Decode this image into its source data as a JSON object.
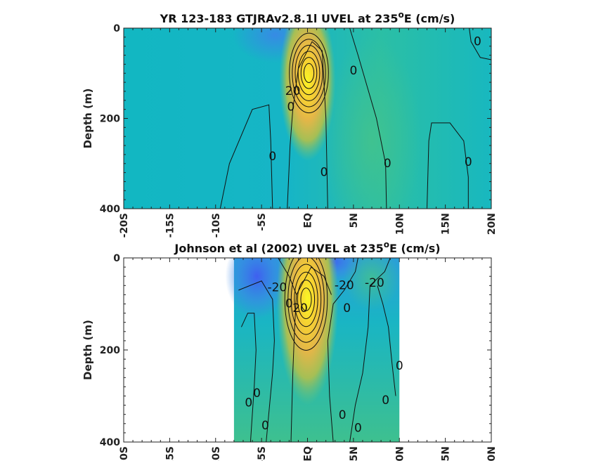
{
  "chart_data": [
    {
      "type": "heatmap",
      "title": "YR 123-183 GTJRAv2.8.1l UVEL at 235",
      "title_sup": "o",
      "title_tail": "E (cm/s)",
      "ylabel": "Depth (m)",
      "xlabel": "",
      "x_ticks": [
        "-20S",
        "-15S",
        "-10S",
        "-5S",
        "EQ",
        "5N",
        "10N",
        "15N",
        "20N"
      ],
      "y_ticks": [
        "0",
        "200",
        "400"
      ],
      "xlim": [
        -20,
        20
      ],
      "ylim": [
        0,
        400
      ],
      "data_extent": [
        -20,
        20
      ],
      "jet_core": {
        "lat": 0,
        "depth": 115,
        "peak": 100
      },
      "contour_labels": [
        {
          "text": "0",
          "lat": 18.5,
          "depth": 30
        },
        {
          "text": "0",
          "lat": 5,
          "depth": 95
        },
        {
          "text": "20",
          "lat": -1.6,
          "depth": 140
        },
        {
          "text": "0",
          "lat": -1.8,
          "depth": 175
        },
        {
          "text": "0",
          "lat": -3.8,
          "depth": 285
        },
        {
          "text": "0",
          "lat": 1.8,
          "depth": 320
        },
        {
          "text": "0",
          "lat": 8.7,
          "depth": 300
        },
        {
          "text": "0",
          "lat": 17.5,
          "depth": 297
        }
      ]
    },
    {
      "type": "heatmap",
      "title": "Johnson et al (2002) UVEL at 235",
      "title_sup": "o",
      "title_tail": "E (cm/s)",
      "ylabel": "Depth (m)",
      "xlabel": "",
      "x_ticks": [
        "-20S",
        "-15S",
        "-10S",
        "-5S",
        "EQ",
        "5N",
        "10N",
        "15N",
        "20N"
      ],
      "y_ticks": [
        "0",
        "200",
        "400"
      ],
      "xlim": [
        -20,
        20
      ],
      "ylim": [
        0,
        400
      ],
      "data_extent": [
        -8,
        10
      ],
      "jet_core": {
        "lat": 0,
        "depth": 90,
        "peak": 100
      },
      "contour_labels": [
        {
          "text": "-20",
          "lat": -3.3,
          "depth": 65
        },
        {
          "text": "-20",
          "lat": 4,
          "depth": 60
        },
        {
          "text": "-20",
          "lat": 7.3,
          "depth": 55
        },
        {
          "text": "0",
          "lat": -2,
          "depth": 100
        },
        {
          "text": "20",
          "lat": -0.8,
          "depth": 110
        },
        {
          "text": "0",
          "lat": 4.3,
          "depth": 110
        },
        {
          "text": "0",
          "lat": 10,
          "depth": 235
        },
        {
          "text": "0",
          "lat": -5.5,
          "depth": 295
        },
        {
          "text": "0",
          "lat": -6.4,
          "depth": 315
        },
        {
          "text": "0",
          "lat": 8.5,
          "depth": 310
        },
        {
          "text": "0",
          "lat": 3.8,
          "depth": 342
        },
        {
          "text": "0",
          "lat": -4.6,
          "depth": 365
        },
        {
          "text": "0",
          "lat": 5.5,
          "depth": 370
        }
      ]
    }
  ]
}
